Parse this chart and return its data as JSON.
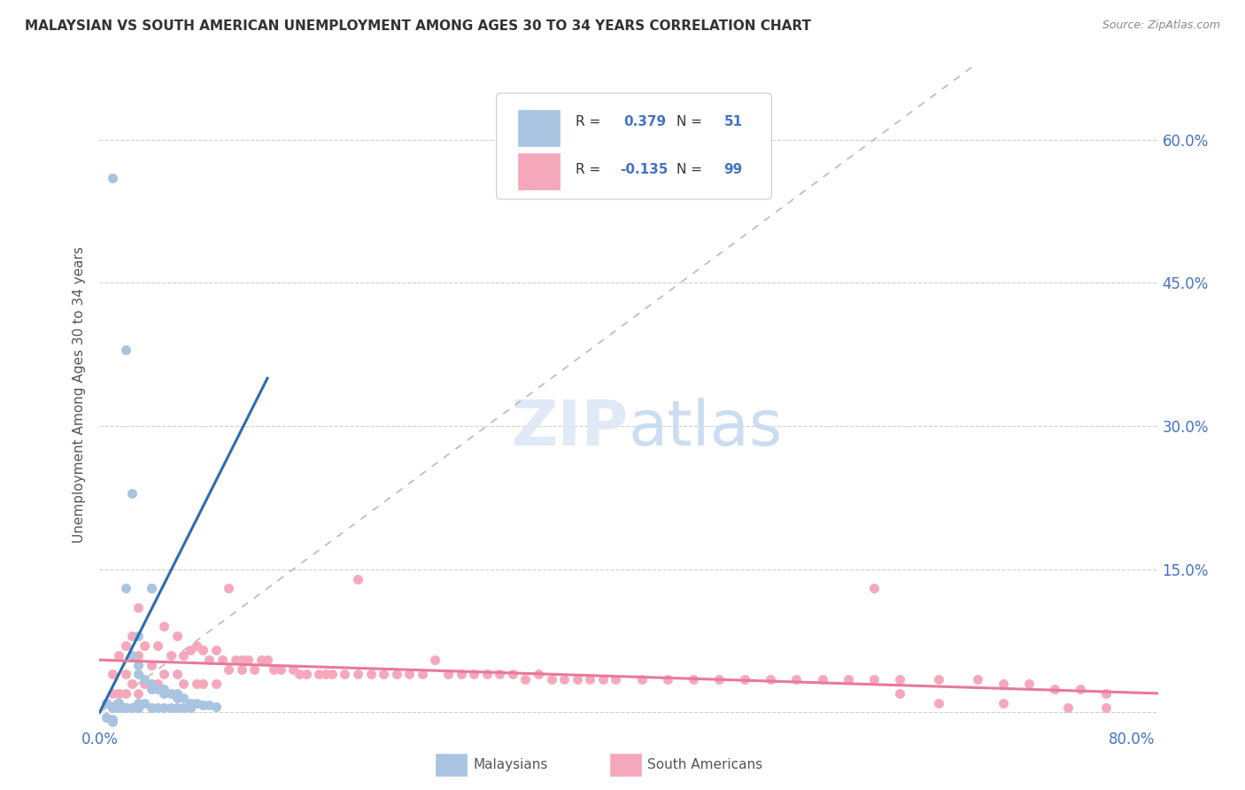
{
  "title": "MALAYSIAN VS SOUTH AMERICAN UNEMPLOYMENT AMONG AGES 30 TO 34 YEARS CORRELATION CHART",
  "source": "Source: ZipAtlas.com",
  "ylabel": "Unemployment Among Ages 30 to 34 years",
  "xlim": [
    0.0,
    0.82
  ],
  "ylim": [
    -0.015,
    0.68
  ],
  "x_tick_positions": [
    0.0,
    0.8
  ],
  "x_tick_labels": [
    "0.0%",
    "80.0%"
  ],
  "y_tick_positions": [
    0.0,
    0.15,
    0.3,
    0.45,
    0.6
  ],
  "y_tick_labels": [
    "",
    "15.0%",
    "30.0%",
    "45.0%",
    "60.0%"
  ],
  "r_malaysian": 0.379,
  "n_malaysian": 51,
  "r_south_american": -0.135,
  "n_south_american": 99,
  "malaysian_color": "#a8c4e0",
  "south_american_color": "#f5a8bc",
  "malaysian_line_color": "#2b6cb0",
  "south_american_line_color": "#e8799a",
  "diagonal_line_color": "#bbbbbb",
  "background_color": "#ffffff",
  "grid_color": "#d0d0d0",
  "malaysian_line_x": [
    0.0,
    0.13
  ],
  "malaysian_line_y": [
    0.0,
    0.35
  ],
  "south_american_line_x": [
    0.0,
    0.82
  ],
  "south_american_line_y": [
    0.055,
    0.02
  ],
  "malaysian_scatter_x": [
    0.005,
    0.01,
    0.015,
    0.015,
    0.015,
    0.02,
    0.02,
    0.02,
    0.025,
    0.025,
    0.025,
    0.03,
    0.03,
    0.03,
    0.03,
    0.03,
    0.035,
    0.035,
    0.04,
    0.04,
    0.04,
    0.04,
    0.045,
    0.045,
    0.05,
    0.05,
    0.055,
    0.055,
    0.06,
    0.06,
    0.065,
    0.065,
    0.07,
    0.07,
    0.075,
    0.08,
    0.085,
    0.09,
    0.01,
    0.02,
    0.025,
    0.03,
    0.05,
    0.06,
    0.07,
    0.01,
    0.015,
    0.02,
    0.005,
    0.01,
    0.01
  ],
  "malaysian_scatter_y": [
    0.01,
    0.56,
    0.01,
    0.01,
    0.005,
    0.38,
    0.13,
    0.005,
    0.23,
    0.06,
    0.005,
    0.08,
    0.05,
    0.04,
    0.01,
    0.005,
    0.035,
    0.01,
    0.13,
    0.03,
    0.025,
    0.005,
    0.025,
    0.005,
    0.025,
    0.02,
    0.02,
    0.005,
    0.02,
    0.015,
    0.015,
    0.005,
    0.01,
    0.005,
    0.01,
    0.008,
    0.008,
    0.006,
    0.005,
    0.005,
    0.005,
    0.005,
    0.005,
    0.005,
    0.005,
    0.005,
    0.005,
    0.005,
    -0.005,
    -0.007,
    -0.01
  ],
  "south_american_scatter_x": [
    0.005,
    0.01,
    0.01,
    0.015,
    0.015,
    0.02,
    0.02,
    0.02,
    0.025,
    0.025,
    0.03,
    0.03,
    0.03,
    0.035,
    0.035,
    0.04,
    0.04,
    0.045,
    0.045,
    0.05,
    0.05,
    0.055,
    0.06,
    0.06,
    0.065,
    0.065,
    0.07,
    0.075,
    0.075,
    0.08,
    0.08,
    0.085,
    0.09,
    0.09,
    0.095,
    0.1,
    0.1,
    0.105,
    0.11,
    0.11,
    0.115,
    0.12,
    0.125,
    0.13,
    0.135,
    0.14,
    0.15,
    0.155,
    0.16,
    0.17,
    0.175,
    0.18,
    0.19,
    0.2,
    0.2,
    0.21,
    0.22,
    0.23,
    0.24,
    0.25,
    0.26,
    0.27,
    0.28,
    0.29,
    0.3,
    0.31,
    0.32,
    0.33,
    0.34,
    0.35,
    0.36,
    0.37,
    0.38,
    0.39,
    0.4,
    0.42,
    0.44,
    0.46,
    0.48,
    0.5,
    0.52,
    0.54,
    0.56,
    0.58,
    0.6,
    0.62,
    0.65,
    0.68,
    0.7,
    0.72,
    0.74,
    0.76,
    0.78,
    0.6,
    0.62,
    0.65,
    0.7,
    0.75,
    0.78
  ],
  "south_american_scatter_y": [
    0.01,
    0.04,
    0.02,
    0.06,
    0.02,
    0.07,
    0.04,
    0.02,
    0.08,
    0.03,
    0.11,
    0.06,
    0.02,
    0.07,
    0.03,
    0.13,
    0.05,
    0.07,
    0.03,
    0.09,
    0.04,
    0.06,
    0.08,
    0.04,
    0.06,
    0.03,
    0.065,
    0.07,
    0.03,
    0.065,
    0.03,
    0.055,
    0.065,
    0.03,
    0.055,
    0.13,
    0.045,
    0.055,
    0.055,
    0.045,
    0.055,
    0.045,
    0.055,
    0.055,
    0.045,
    0.045,
    0.045,
    0.04,
    0.04,
    0.04,
    0.04,
    0.04,
    0.04,
    0.14,
    0.04,
    0.04,
    0.04,
    0.04,
    0.04,
    0.04,
    0.055,
    0.04,
    0.04,
    0.04,
    0.04,
    0.04,
    0.04,
    0.035,
    0.04,
    0.035,
    0.035,
    0.035,
    0.035,
    0.035,
    0.035,
    0.035,
    0.035,
    0.035,
    0.035,
    0.035,
    0.035,
    0.035,
    0.035,
    0.035,
    0.035,
    0.035,
    0.035,
    0.035,
    0.03,
    0.03,
    0.025,
    0.025,
    0.02,
    0.13,
    0.02,
    0.01,
    0.01,
    0.005,
    0.005
  ]
}
